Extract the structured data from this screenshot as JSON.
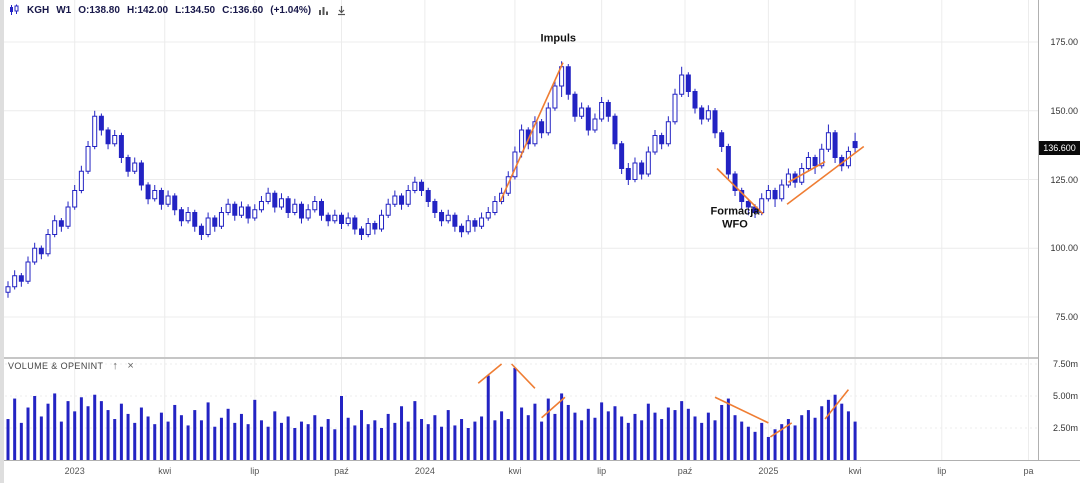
{
  "toolbar": {
    "symbol": "KGH",
    "interval": "W1",
    "open": "O:138.80",
    "high": "H:142.00",
    "low": "L:134.50",
    "close": "C:136.60",
    "change": "(+1.04%)"
  },
  "volume_panel": {
    "title": "VOLUME & OPENINT"
  },
  "price_axis": {
    "ticks": [
      {
        "value": 175,
        "label": "175.00"
      },
      {
        "value": 150,
        "label": "150.00"
      },
      {
        "value": 125,
        "label": "125.00"
      },
      {
        "value": 100,
        "label": "100.00"
      },
      {
        "value": 75,
        "label": "75.00"
      }
    ],
    "current_price_value": 136.6,
    "current_price_label": "136.600"
  },
  "volume_axis": {
    "ticks": [
      {
        "value": 7.5,
        "label": "7.50m"
      },
      {
        "value": 5.0,
        "label": "5.00m"
      },
      {
        "value": 2.5,
        "label": "2.50m"
      }
    ]
  },
  "time_axis": {
    "ticks": [
      {
        "label": "2023",
        "week": 10
      },
      {
        "label": "kwi",
        "week": 23.5
      },
      {
        "label": "lip",
        "week": 37
      },
      {
        "label": "paź",
        "week": 50
      },
      {
        "label": "2024",
        "week": 62.5
      },
      {
        "label": "kwi",
        "week": 76
      },
      {
        "label": "lip",
        "week": 89
      },
      {
        "label": "paź",
        "week": 101.5
      },
      {
        "label": "2025",
        "week": 114
      },
      {
        "label": "kwi",
        "week": 127
      },
      {
        "label": "lip",
        "week": 140
      },
      {
        "label": "pa",
        "week": 153
      }
    ]
  },
  "colors": {
    "candle": "#2323c3",
    "candle_up_fill": "#ffffff",
    "orange": "#ef7d33",
    "grid": "#ececec",
    "axis_text": "#333333",
    "badge_bg": "#0a0a0a"
  },
  "chart_data": {
    "type": "candlestick",
    "symbol": "KGH",
    "interval": "weekly",
    "title": "KGH W1 candlestick chart with VOLUME & OPENINT sub-panel",
    "ylim": [
      75,
      186
    ],
    "volume_ylim_m": [
      0,
      7.9
    ],
    "candles": [
      [
        84,
        88,
        82,
        86
      ],
      [
        86,
        92,
        85,
        90
      ],
      [
        90,
        91,
        86,
        88
      ],
      [
        88,
        97,
        87,
        95
      ],
      [
        95,
        102,
        94,
        100
      ],
      [
        100,
        101,
        96,
        98
      ],
      [
        98,
        107,
        97,
        105
      ],
      [
        105,
        112,
        104,
        110
      ],
      [
        110,
        111,
        106,
        108
      ],
      [
        108,
        117,
        107,
        115
      ],
      [
        115,
        123,
        114,
        121
      ],
      [
        121,
        130,
        120,
        128
      ],
      [
        128,
        139,
        127,
        137
      ],
      [
        137,
        150,
        136,
        148
      ],
      [
        148,
        149,
        141,
        143
      ],
      [
        143,
        144,
        136,
        138
      ],
      [
        138,
        143,
        137,
        141
      ],
      [
        141,
        142,
        131,
        133
      ],
      [
        133,
        134,
        126,
        128
      ],
      [
        128,
        133,
        127,
        131
      ],
      [
        131,
        132,
        121,
        123
      ],
      [
        123,
        124,
        116,
        118
      ],
      [
        118,
        123,
        117,
        121
      ],
      [
        121,
        122,
        114,
        116
      ],
      [
        116,
        121,
        115,
        119
      ],
      [
        119,
        120,
        112,
        114
      ],
      [
        114,
        115,
        108,
        110
      ],
      [
        110,
        115,
        109,
        113
      ],
      [
        113,
        114,
        106,
        108
      ],
      [
        108,
        109,
        103,
        105
      ],
      [
        105,
        113,
        104,
        111
      ],
      [
        111,
        112,
        106,
        108
      ],
      [
        108,
        115,
        107,
        113
      ],
      [
        113,
        118,
        112,
        116
      ],
      [
        116,
        117,
        110,
        112
      ],
      [
        112,
        117,
        111,
        115
      ],
      [
        115,
        116,
        109,
        111
      ],
      [
        111,
        116,
        110,
        114
      ],
      [
        114,
        119,
        113,
        117
      ],
      [
        117,
        122,
        116,
        120
      ],
      [
        120,
        121,
        113,
        115
      ],
      [
        115,
        120,
        114,
        118
      ],
      [
        118,
        119,
        111,
        113
      ],
      [
        113,
        118,
        112,
        116
      ],
      [
        116,
        117,
        109,
        111
      ],
      [
        111,
        116,
        110,
        114
      ],
      [
        114,
        119,
        113,
        117
      ],
      [
        117,
        118,
        110,
        112
      ],
      [
        112,
        113,
        108,
        110
      ],
      [
        110,
        114,
        109,
        112
      ],
      [
        112,
        113,
        107,
        109
      ],
      [
        109,
        113,
        108,
        111
      ],
      [
        111,
        112,
        105,
        107
      ],
      [
        107,
        108,
        103,
        105
      ],
      [
        105,
        111,
        104,
        109
      ],
      [
        109,
        110,
        105,
        107
      ],
      [
        107,
        114,
        106,
        112
      ],
      [
        112,
        118,
        111,
        116
      ],
      [
        116,
        121,
        115,
        119
      ],
      [
        119,
        120,
        114,
        116
      ],
      [
        116,
        123,
        115,
        121
      ],
      [
        121,
        126,
        120,
        124
      ],
      [
        124,
        125,
        119,
        121
      ],
      [
        121,
        122,
        115,
        117
      ],
      [
        117,
        118,
        111,
        113
      ],
      [
        113,
        114,
        108,
        110
      ],
      [
        110,
        114,
        109,
        112
      ],
      [
        112,
        113,
        106,
        108
      ],
      [
        108,
        109,
        104,
        106
      ],
      [
        106,
        112,
        105,
        110
      ],
      [
        110,
        111,
        106,
        108
      ],
      [
        108,
        113,
        107,
        111
      ],
      [
        111,
        115,
        110,
        113
      ],
      [
        113,
        119,
        112,
        117
      ],
      [
        117,
        122,
        116,
        120
      ],
      [
        120,
        128,
        119,
        126
      ],
      [
        126,
        137,
        125,
        135
      ],
      [
        135,
        145,
        133,
        143
      ],
      [
        143,
        144,
        136,
        138
      ],
      [
        138,
        148,
        137,
        146
      ],
      [
        146,
        147,
        140,
        142
      ],
      [
        142,
        153,
        141,
        151
      ],
      [
        151,
        161,
        150,
        159
      ],
      [
        159,
        168,
        155,
        166
      ],
      [
        166,
        167,
        154,
        156
      ],
      [
        156,
        157,
        146,
        148
      ],
      [
        148,
        153,
        147,
        151
      ],
      [
        151,
        152,
        141,
        143
      ],
      [
        143,
        149,
        142,
        147
      ],
      [
        147,
        155,
        146,
        153
      ],
      [
        153,
        154,
        146,
        148
      ],
      [
        148,
        149,
        136,
        138
      ],
      [
        138,
        139,
        127,
        129
      ],
      [
        129,
        131,
        123,
        125
      ],
      [
        125,
        133,
        124,
        131
      ],
      [
        131,
        132,
        125,
        127
      ],
      [
        127,
        137,
        126,
        135
      ],
      [
        135,
        143,
        134,
        141
      ],
      [
        141,
        142,
        136,
        138
      ],
      [
        138,
        148,
        137,
        146
      ],
      [
        146,
        158,
        145,
        156
      ],
      [
        156,
        166,
        155,
        163
      ],
      [
        163,
        164,
        155,
        157
      ],
      [
        157,
        158,
        149,
        151
      ],
      [
        151,
        152,
        145,
        147
      ],
      [
        147,
        152,
        146,
        150
      ],
      [
        150,
        151,
        140,
        142
      ],
      [
        142,
        143,
        135,
        137
      ],
      [
        137,
        138,
        125,
        127
      ],
      [
        127,
        128,
        119,
        121
      ],
      [
        121,
        122,
        114,
        117
      ],
      [
        117,
        118,
        112,
        115
      ],
      [
        115,
        116,
        111,
        113
      ],
      [
        113,
        120,
        112,
        118
      ],
      [
        118,
        123,
        117,
        121
      ],
      [
        121,
        122,
        115,
        118
      ],
      [
        118,
        125,
        117,
        123
      ],
      [
        123,
        129,
        122,
        127
      ],
      [
        127,
        128,
        122,
        124
      ],
      [
        124,
        131,
        123,
        129
      ],
      [
        129,
        135,
        128,
        133
      ],
      [
        133,
        134,
        127,
        130
      ],
      [
        130,
        138,
        129,
        136
      ],
      [
        136,
        145,
        135,
        142
      ],
      [
        142,
        143,
        131,
        133
      ],
      [
        133,
        134,
        128,
        130
      ],
      [
        130,
        137,
        129,
        135.2
      ],
      [
        138.8,
        142,
        134.5,
        136.6
      ]
    ],
    "volumes": [
      3.2,
      4.8,
      2.9,
      4.1,
      5.0,
      3.4,
      4.4,
      5.2,
      3.0,
      4.6,
      3.8,
      4.9,
      4.2,
      5.1,
      4.6,
      3.9,
      3.2,
      4.4,
      3.6,
      2.9,
      4.1,
      3.4,
      2.8,
      3.7,
      3.0,
      4.3,
      3.5,
      2.7,
      3.9,
      3.1,
      4.5,
      2.6,
      3.3,
      4.0,
      2.9,
      3.6,
      2.8,
      4.7,
      3.1,
      2.6,
      3.8,
      2.9,
      3.4,
      2.5,
      3.0,
      2.8,
      3.5,
      2.6,
      3.2,
      2.4,
      5.0,
      3.3,
      2.7,
      3.9,
      2.8,
      3.1,
      2.5,
      3.6,
      2.9,
      4.2,
      3.0,
      4.6,
      3.2,
      2.8,
      3.5,
      2.6,
      3.9,
      2.7,
      3.2,
      2.5,
      3.0,
      3.4,
      6.6,
      3.1,
      3.8,
      3.2,
      7.2,
      4.1,
      3.5,
      4.4,
      3.0,
      4.8,
      3.6,
      5.2,
      4.3,
      3.7,
      3.1,
      4.0,
      3.3,
      4.5,
      3.8,
      4.2,
      3.4,
      2.9,
      3.6,
      3.1,
      4.4,
      3.7,
      3.2,
      4.1,
      3.9,
      4.6,
      4.0,
      3.4,
      2.9,
      3.7,
      3.1,
      4.3,
      4.8,
      3.5,
      3.0,
      2.6,
      2.2,
      2.9,
      1.8,
      2.4,
      2.8,
      3.2,
      2.7,
      3.5,
      3.9,
      3.3,
      4.2,
      4.7,
      5.1,
      4.4,
      3.8,
      3.0
    ],
    "annotations": [
      {
        "text": "Impuls",
        "week": 82.5,
        "price": 176
      },
      {
        "text": "Formacja\nWFO",
        "week": 109,
        "price": 111
      }
    ],
    "trendlines": [
      {
        "w1": 73.8,
        "p1": 117,
        "w2": 83.2,
        "p2": 167.5
      },
      {
        "w1": 106.3,
        "p1": 129,
        "w2": 113.2,
        "p2": 112.5
      },
      {
        "w1": 116.8,
        "p1": 116,
        "w2": 128.3,
        "p2": 137
      },
      {
        "w1": 117,
        "p1": 124,
        "w2": 122.5,
        "p2": 131.5
      }
    ],
    "volume_trendlines": [
      {
        "w1": 70.5,
        "v1": 6.0,
        "w2": 74,
        "v2": 7.5
      },
      {
        "w1": 75.5,
        "v1": 7.5,
        "w2": 79,
        "v2": 5.6
      },
      {
        "w1": 80,
        "v1": 3.3,
        "w2": 83.5,
        "v2": 4.9
      },
      {
        "w1": 106,
        "v1": 4.9,
        "w2": 114,
        "v2": 2.9
      },
      {
        "w1": 114.3,
        "v1": 1.8,
        "w2": 117.5,
        "v2": 2.9
      },
      {
        "w1": 122.5,
        "v1": 3.2,
        "w2": 126,
        "v2": 5.5
      }
    ]
  }
}
